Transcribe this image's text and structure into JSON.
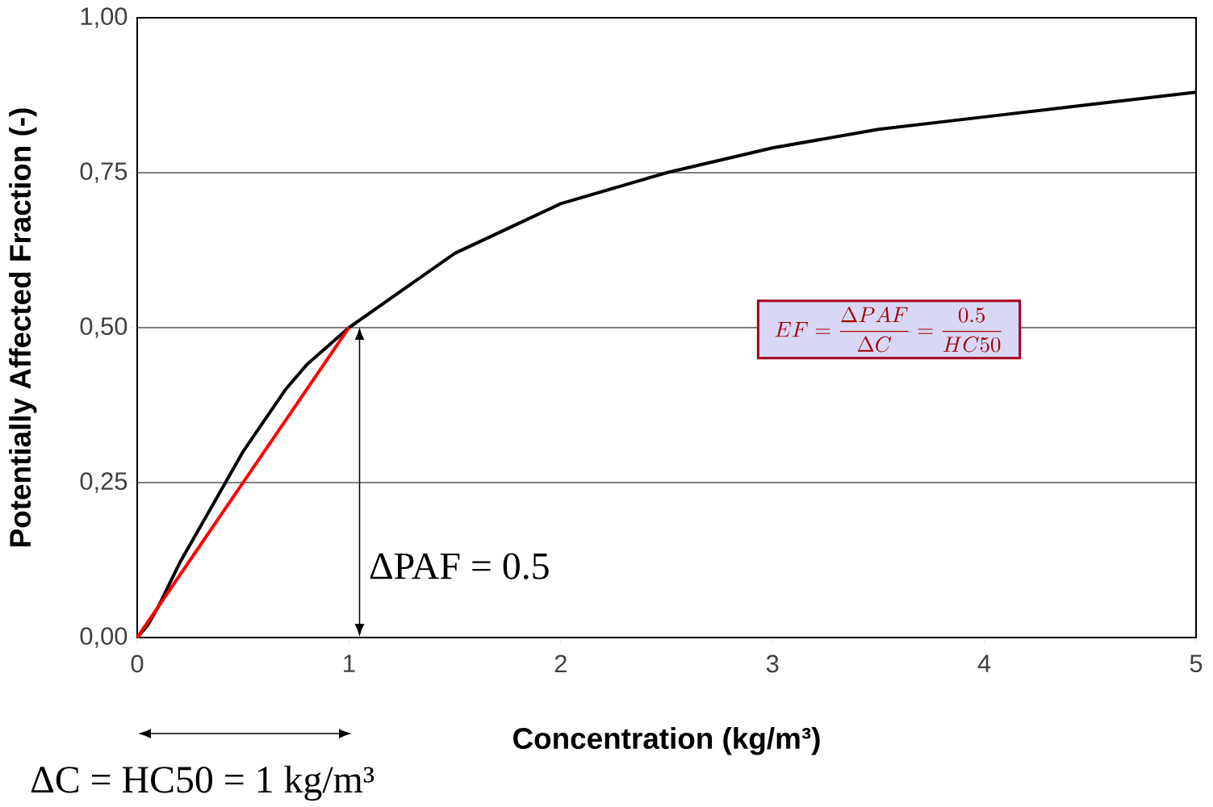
{
  "chart_data": {
    "type": "line",
    "xlabel": "Concentration (kg/m³)",
    "ylabel": "Potentially Affected Fraction (-)",
    "xlim": [
      0,
      5
    ],
    "ylim": [
      0,
      1
    ],
    "xticks": [
      0,
      1,
      2,
      3,
      4,
      5
    ],
    "yticks": [
      {
        "value": 0,
        "label": "0,00"
      },
      {
        "value": 0.25,
        "label": "0,25"
      },
      {
        "value": 0.5,
        "label": "0,50"
      },
      {
        "value": 0.75,
        "label": "0,75"
      },
      {
        "value": 1,
        "label": "1,00"
      }
    ],
    "grid": "y",
    "series": [
      {
        "color": "#000000",
        "x": [
          0,
          0.05,
          0.1,
          0.2,
          0.3,
          0.4,
          0.5,
          0.6,
          0.7,
          0.8,
          0.9,
          1,
          1.25,
          1.5,
          1.75,
          2,
          2.5,
          3,
          3.5,
          4,
          4.5,
          5
        ],
        "values": [
          0,
          0.02,
          0.05,
          0.12,
          0.18,
          0.24,
          0.3,
          0.35,
          0.4,
          0.44,
          0.47,
          0.5,
          0.56,
          0.62,
          0.66,
          0.7,
          0.75,
          0.79,
          0.82,
          0.84,
          0.86,
          0.88
        ]
      },
      {
        "color": "#ff0000",
        "x": [
          0,
          1
        ],
        "values": [
          0,
          0.5
        ]
      }
    ],
    "annotations": [
      {
        "text": "EF = \\frac{\\Delta PAF}{\\Delta C} = \\frac{0.5}{HC50}"
      },
      "ΔPAF = 0.5",
      "ΔC = HC50 = 1 kg/m³"
    ]
  }
}
